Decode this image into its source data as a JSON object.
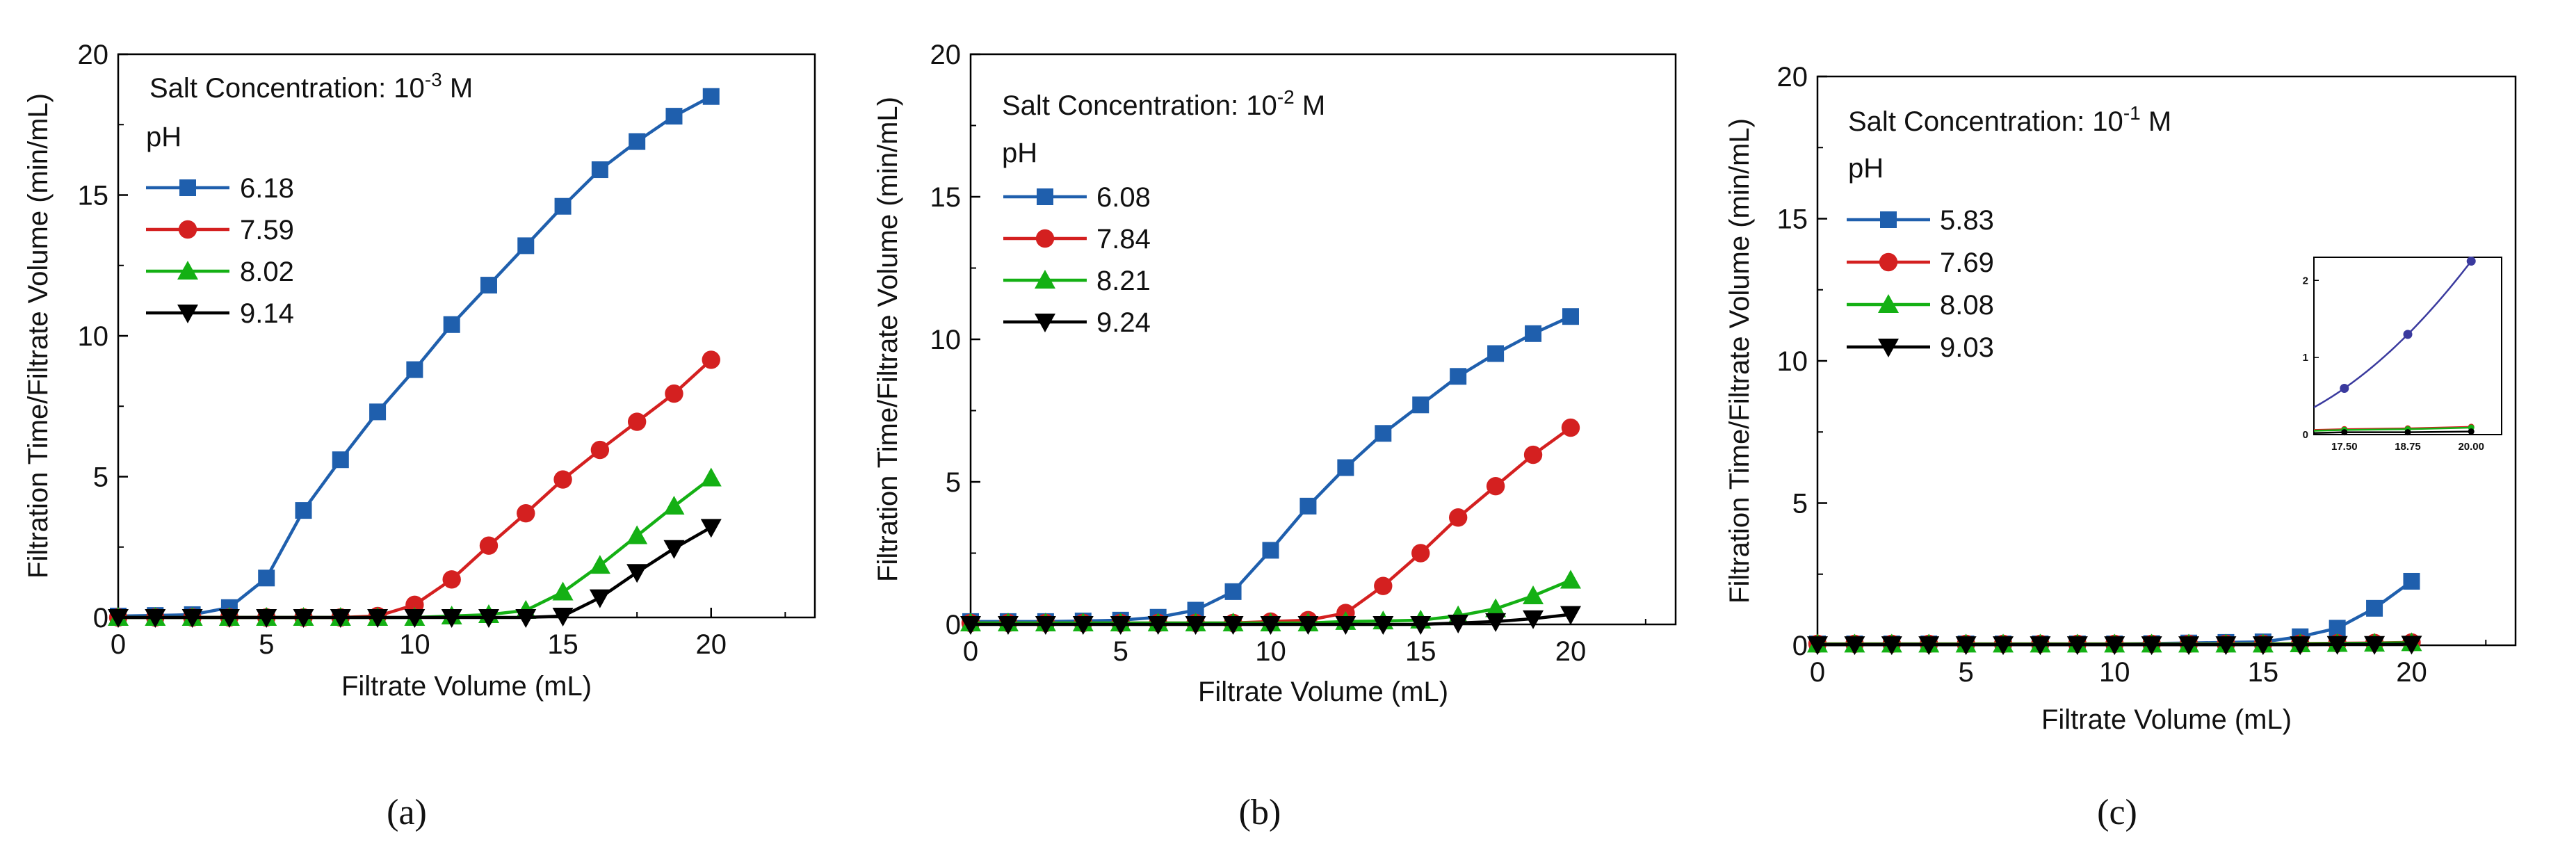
{
  "chart_data": [
    {
      "type": "line",
      "caption": "(a)",
      "title_prefix": "Salt Concentration: 10",
      "title_exp": "-3",
      "title_suffix": " M",
      "legend_title": "pH",
      "xlabel": "Filtrate Volume (mL)",
      "ylabel": "Filtration Time/Filtrate Volume (min/mL)",
      "xlim": [
        0,
        23.5
      ],
      "ylim": [
        0,
        20
      ],
      "xticks": [
        "0",
        "5",
        "10",
        "15",
        "20"
      ],
      "yticks": [
        "0",
        "5",
        "10",
        "15",
        "20"
      ],
      "x": [
        0,
        1.25,
        2.5,
        3.75,
        5,
        6.25,
        7.5,
        8.75,
        10,
        11.25,
        12.5,
        13.75,
        15,
        16.25,
        17.5,
        18.75,
        20
      ],
      "series": [
        {
          "name": "6.18",
          "color": "#1f5fad",
          "marker": "square",
          "values": [
            0.05,
            0.07,
            0.1,
            0.35,
            1.4,
            3.8,
            5.6,
            7.3,
            8.8,
            10.4,
            11.8,
            13.2,
            14.6,
            15.9,
            16.9,
            17.8,
            18.5
          ]
        },
        {
          "name": "7.59",
          "color": "#d42020",
          "marker": "circle",
          "values": [
            0,
            0,
            0,
            0,
            0,
            0,
            0,
            0.05,
            0.45,
            1.35,
            2.55,
            3.7,
            4.9,
            5.95,
            6.95,
            7.95,
            9.15
          ]
        },
        {
          "name": "8.02",
          "color": "#14b014",
          "marker": "triangle-up",
          "values": [
            0,
            0,
            0,
            0,
            0,
            0,
            0,
            0,
            0,
            0.05,
            0.1,
            0.25,
            0.9,
            1.85,
            2.9,
            3.95,
            4.95
          ]
        },
        {
          "name": "9.14",
          "color": "#000000",
          "marker": "triangle-down",
          "values": [
            0,
            0,
            0,
            0,
            0,
            0,
            0,
            0,
            0,
            0,
            0,
            0,
            0.05,
            0.7,
            1.6,
            2.45,
            3.2
          ]
        }
      ]
    },
    {
      "type": "line",
      "caption": "(b)",
      "title_prefix": "Salt Concentration: 10",
      "title_exp": "-2",
      "title_suffix": " M",
      "legend_title": "pH",
      "xlabel": "Filtrate Volume (mL)",
      "ylabel": "Filtration Time/Filtrate Volume (min/mL)",
      "xlim": [
        0,
        23.5
      ],
      "ylim": [
        0,
        20
      ],
      "xticks": [
        "0",
        "5",
        "10",
        "15",
        "20"
      ],
      "yticks": [
        "0",
        "5",
        "10",
        "15",
        "20"
      ],
      "x": [
        0,
        1.25,
        2.5,
        3.75,
        5,
        6.25,
        7.5,
        8.75,
        10,
        11.25,
        12.5,
        13.75,
        15,
        16.25,
        17.5,
        18.75,
        20
      ],
      "series": [
        {
          "name": "6.08",
          "color": "#1f5fad",
          "marker": "square",
          "values": [
            0.1,
            0.1,
            0.1,
            0.12,
            0.15,
            0.25,
            0.5,
            1.15,
            2.6,
            4.15,
            5.5,
            6.7,
            7.7,
            8.7,
            9.5,
            10.2,
            10.8
          ]
        },
        {
          "name": "7.84",
          "color": "#d42020",
          "marker": "circle",
          "values": [
            0.05,
            0.05,
            0.05,
            0.05,
            0.05,
            0.05,
            0.05,
            0.05,
            0.1,
            0.15,
            0.4,
            1.35,
            2.5,
            3.75,
            4.85,
            5.95,
            6.9
          ]
        },
        {
          "name": "8.21",
          "color": "#14b014",
          "marker": "triangle-up",
          "values": [
            0.05,
            0.05,
            0.05,
            0.05,
            0.05,
            0.05,
            0.05,
            0.05,
            0.05,
            0.05,
            0.1,
            0.12,
            0.15,
            0.3,
            0.55,
            1.0,
            1.55
          ]
        },
        {
          "name": "9.24",
          "color": "#000000",
          "marker": "triangle-down",
          "values": [
            0,
            0,
            0,
            0,
            0,
            0,
            0,
            0,
            0,
            0,
            0,
            0,
            0,
            0.05,
            0.1,
            0.2,
            0.35
          ]
        }
      ]
    },
    {
      "type": "line",
      "caption": "(c)",
      "title_prefix": "Salt Concentration: 10",
      "title_exp": "-1",
      "title_suffix": " M",
      "legend_title": "pH",
      "xlabel": "Filtrate Volume (mL)",
      "ylabel": "Filtration Time/Filtrate Volume (min/mL)",
      "xlim": [
        0,
        23.5
      ],
      "ylim": [
        0,
        20
      ],
      "xticks": [
        "0",
        "5",
        "10",
        "15",
        "20"
      ],
      "yticks": [
        "0",
        "5",
        "10",
        "15",
        "20"
      ],
      "x": [
        0,
        1.25,
        2.5,
        3.75,
        5,
        6.25,
        7.5,
        8.75,
        10,
        11.25,
        12.5,
        13.75,
        15,
        16.25,
        17.5,
        18.75,
        20
      ],
      "series": [
        {
          "name": "5.83",
          "color": "#1f5fad",
          "marker": "square",
          "values": [
            0.05,
            0.05,
            0.05,
            0.05,
            0.05,
            0.05,
            0.05,
            0.05,
            0.05,
            0.06,
            0.08,
            0.1,
            0.12,
            0.3,
            0.6,
            1.3,
            2.25
          ]
        },
        {
          "name": "7.69",
          "color": "#d42020",
          "marker": "circle",
          "values": [
            0.05,
            0.05,
            0.05,
            0.05,
            0.05,
            0.05,
            0.05,
            0.05,
            0.05,
            0.05,
            0.05,
            0.05,
            0.05,
            0.06,
            0.07,
            0.08,
            0.1
          ]
        },
        {
          "name": "8.08",
          "color": "#14b014",
          "marker": "triangle-up",
          "values": [
            0.04,
            0.04,
            0.04,
            0.04,
            0.04,
            0.04,
            0.04,
            0.04,
            0.04,
            0.04,
            0.04,
            0.04,
            0.04,
            0.05,
            0.06,
            0.07,
            0.09
          ]
        },
        {
          "name": "9.03",
          "color": "#000000",
          "marker": "triangle-down",
          "values": [
            0.02,
            0.02,
            0.02,
            0.02,
            0.02,
            0.02,
            0.02,
            0.02,
            0.02,
            0.02,
            0.02,
            0.02,
            0.02,
            0.02,
            0.03,
            0.03,
            0.04
          ]
        }
      ],
      "inset": {
        "xlim": [
          16.9,
          20.6
        ],
        "ylim": [
          0,
          2.3
        ],
        "xticks": [
          "17.50",
          "18.75",
          "20.00"
        ],
        "yticks": [
          "0",
          "1",
          "2"
        ],
        "x": [
          17.5,
          18.75,
          20
        ],
        "series": [
          {
            "name": "5.83",
            "color": "#3a3a9e",
            "values": [
              0.6,
              1.3,
              2.25
            ]
          },
          {
            "name": "7.69",
            "color": "#d42020",
            "values": [
              0.07,
              0.08,
              0.1
            ]
          },
          {
            "name": "8.08",
            "color": "#14b014",
            "values": [
              0.06,
              0.07,
              0.09
            ]
          },
          {
            "name": "9.03",
            "color": "#000000",
            "values": [
              0.03,
              0.03,
              0.04
            ]
          }
        ]
      }
    }
  ]
}
